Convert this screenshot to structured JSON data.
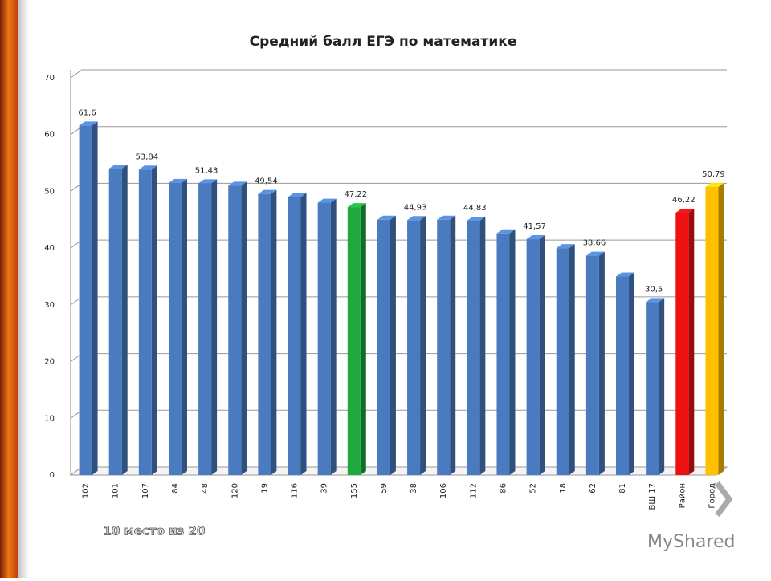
{
  "chart_data": {
    "type": "bar3d",
    "title": "Средний балл ЕГЭ по математике",
    "categories": [
      "102",
      "101",
      "107",
      "84",
      "48",
      "120",
      "19",
      "116",
      "39",
      "155",
      "59",
      "38",
      "106",
      "112",
      "86",
      "52",
      "18",
      "62",
      "81",
      "ВШ 17",
      "Район",
      "Город"
    ],
    "values": [
      61.6,
      54,
      53.84,
      51.5,
      51.43,
      51,
      49.54,
      49,
      48,
      47.22,
      45,
      44.93,
      45,
      44.83,
      42.6,
      41.57,
      40,
      38.66,
      35,
      30.5,
      46.22,
      50.79
    ],
    "value_labels": [
      "61,6",
      null,
      "53,84",
      null,
      "51,43",
      null,
      "49,54",
      null,
      null,
      "47,22",
      null,
      "44,93",
      null,
      "44,83",
      null,
      "41,57",
      null,
      "38,66",
      null,
      "30,5",
      "46,22",
      "50,79"
    ],
    "colors": [
      "#4a7bc0",
      "#4a7bc0",
      "#4a7bc0",
      "#4a7bc0",
      "#4a7bc0",
      "#4a7bc0",
      "#4a7bc0",
      "#4a7bc0",
      "#4a7bc0",
      "#1fa83c",
      "#4a7bc0",
      "#4a7bc0",
      "#4a7bc0",
      "#4a7bc0",
      "#4a7bc0",
      "#4a7bc0",
      "#4a7bc0",
      "#4a7bc0",
      "#4a7bc0",
      "#4a7bc0",
      "#ee1111",
      "#ffc000"
    ],
    "ylim": [
      0,
      70
    ],
    "yticks": [
      0,
      10,
      20,
      30,
      40,
      50,
      60,
      70
    ],
    "grid": true,
    "annotation": "10 место из  20",
    "watermark": "MyShared"
  }
}
